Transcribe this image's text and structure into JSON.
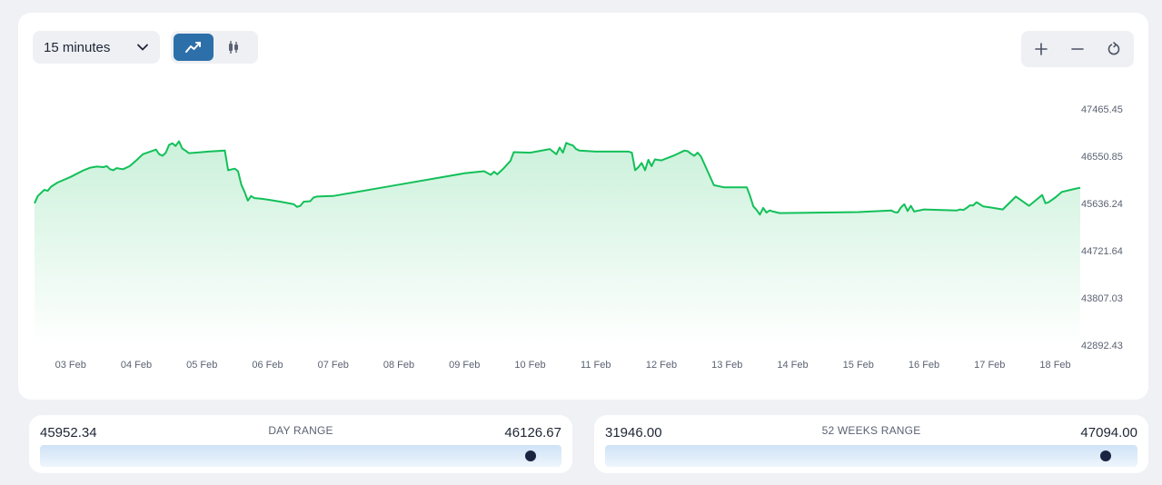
{
  "controls": {
    "interval": "15 minutes",
    "line_icon": "line-chart-icon",
    "candle_icon": "candlestick-icon",
    "zoom_in_icon": "plus-icon",
    "zoom_out_icon": "minus-icon",
    "reset_icon": "reset-icon"
  },
  "colors": {
    "line": "#12c059",
    "active_button": "#2d6fa9",
    "range_dot": "#1b2440"
  },
  "chart_data": {
    "type": "area",
    "x_ticks": [
      "03 Feb",
      "04 Feb",
      "05 Feb",
      "06 Feb",
      "07 Feb",
      "08 Feb",
      "09 Feb",
      "10 Feb",
      "11 Feb",
      "12 Feb",
      "13 Feb",
      "14 Feb",
      "15 Feb",
      "16 Feb",
      "17 Feb",
      "18 Feb"
    ],
    "y_ticks": [
      "47465.45",
      "46550.85",
      "45636.24",
      "44721.64",
      "43807.03",
      "42892.43"
    ],
    "ylim": [
      42892.43,
      47465.45
    ],
    "xlim": [
      -0.55,
      15.38
    ],
    "x": [
      -0.55,
      -0.5,
      -0.45,
      -0.4,
      -0.35,
      -0.3,
      -0.2,
      0.0,
      0.2,
      0.3,
      0.4,
      0.5,
      0.55,
      0.6,
      0.65,
      0.7,
      0.8,
      0.9,
      1.0,
      1.1,
      1.3,
      1.35,
      1.4,
      1.45,
      1.5,
      1.55,
      1.6,
      1.65,
      1.7,
      1.75,
      1.8,
      1.9,
      2.1,
      2.35,
      2.4,
      2.5,
      2.55,
      2.6,
      2.65,
      2.7,
      2.75,
      2.8,
      2.9,
      3.0,
      3.2,
      3.4,
      3.45,
      3.5,
      3.55,
      3.65,
      3.7,
      3.75,
      4.0,
      5.0,
      6.0,
      6.3,
      6.4,
      6.45,
      6.5,
      6.6,
      6.7,
      6.75,
      7.0,
      7.3,
      7.4,
      7.45,
      7.5,
      7.55,
      7.6,
      7.65,
      7.7,
      7.75,
      8.0,
      8.5,
      8.55,
      8.6,
      8.65,
      8.7,
      8.75,
      8.8,
      8.85,
      8.9,
      9.0,
      9.2,
      9.35,
      9.4,
      9.45,
      9.5,
      9.55,
      9.6,
      9.8,
      9.95,
      10.0,
      10.3,
      10.35,
      10.4,
      10.45,
      10.5,
      10.55,
      10.6,
      10.65,
      10.7,
      10.8,
      12.0,
      12.5,
      12.55,
      12.6,
      12.65,
      12.7,
      12.75,
      12.8,
      12.85,
      13.0,
      13.5,
      13.55,
      13.6,
      13.65,
      13.7,
      13.75,
      13.8,
      13.85,
      13.9,
      14.0,
      14.2,
      14.4,
      14.6,
      14.8,
      14.85,
      14.9,
      15.0,
      15.1,
      15.3,
      15.38
    ],
    "y": [
      45640,
      45780,
      45840,
      45900,
      45880,
      45960,
      46040,
      46150,
      46280,
      46330,
      46350,
      46340,
      46360,
      46300,
      46280,
      46320,
      46300,
      46360,
      46470,
      46590,
      46680,
      46590,
      46560,
      46620,
      46770,
      46800,
      46750,
      46840,
      46700,
      46660,
      46610,
      46620,
      46640,
      46660,
      46280,
      46310,
      46260,
      46000,
      45860,
      45690,
      45780,
      45740,
      45730,
      45710,
      45670,
      45620,
      45570,
      45590,
      45670,
      45680,
      45750,
      45770,
      45780,
      46000,
      46220,
      46260,
      46190,
      46250,
      46200,
      46320,
      46460,
      46630,
      46620,
      46690,
      46590,
      46720,
      46620,
      46810,
      46780,
      46760,
      46690,
      46660,
      46640,
      46640,
      46620,
      46280,
      46340,
      46420,
      46280,
      46480,
      46360,
      46490,
      46470,
      46570,
      46660,
      46650,
      46600,
      46560,
      46620,
      46550,
      45990,
      45950,
      45950,
      45950,
      45780,
      45580,
      45510,
      45420,
      45550,
      45460,
      45500,
      45480,
      45450,
      45470,
      45500,
      45470,
      45460,
      45560,
      45620,
      45490,
      45590,
      45480,
      45520,
      45500,
      45520,
      45510,
      45550,
      45600,
      45600,
      45660,
      45620,
      45580,
      45560,
      45520,
      45770,
      45590,
      45800,
      45640,
      45660,
      45750,
      45860,
      45920,
      45940
    ],
    "title": "",
    "xlabel": "",
    "ylabel": ""
  },
  "day_range": {
    "low": "45952.34",
    "high": "46126.67",
    "title": "DAY RANGE",
    "position": 0.94
  },
  "week52_range": {
    "low": "31946.00",
    "high": "47094.00",
    "title": "52 WEEKS RANGE",
    "position": 0.94
  }
}
